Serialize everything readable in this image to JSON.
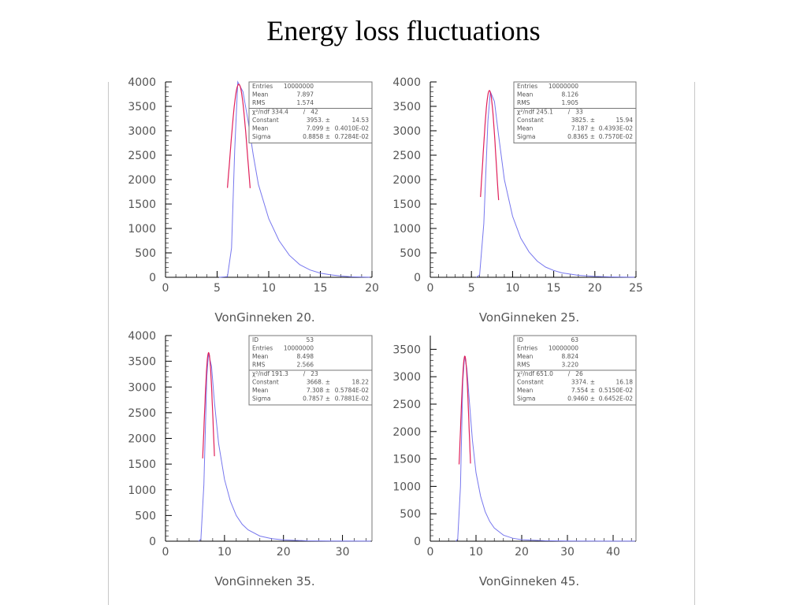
{
  "title": "Energy loss fluctuations",
  "colors": {
    "histogram": "#7777ee",
    "fit": "#e0205a",
    "axis": "#000000",
    "frame": "#777777",
    "text": "#555555"
  },
  "chart_data": [
    {
      "type": "line",
      "xlabel": "VonGinneken  20.",
      "xlim": [
        0,
        20
      ],
      "ylim": [
        0,
        4000
      ],
      "xticks": [
        0,
        5,
        10,
        15,
        20
      ],
      "yticks": [
        0,
        500,
        1000,
        1500,
        2000,
        2500,
        3000,
        3500,
        4000
      ],
      "series": [
        {
          "kind": "histogram",
          "x": [
            5.2,
            6.0,
            6.4,
            6.7,
            7.0,
            7.5,
            8.0,
            8.5,
            9.0,
            10,
            11,
            12,
            13,
            14,
            15,
            16,
            17,
            18,
            19.8
          ],
          "y": [
            0,
            15,
            600,
            2600,
            4000,
            3800,
            3200,
            2500,
            1900,
            1200,
            750,
            450,
            260,
            150,
            85,
            50,
            25,
            10,
            2
          ]
        },
        {
          "kind": "gaussian-fit",
          "constant": 3953,
          "mean": 7.099,
          "sigma": 0.8858,
          "range": [
            6.0,
            8.2
          ]
        }
      ],
      "stats": {
        "rows_top": [
          [
            "Entries",
            "10000000"
          ],
          [
            "Mean",
            "7.897"
          ],
          [
            "RMS",
            "1.574"
          ]
        ],
        "chi2": [
          "χ²/ndf 334.4",
          "/",
          "42"
        ],
        "rows_fit": [
          [
            "Constant",
            "3953. ±",
            "14.53"
          ],
          [
            "Mean",
            "7.099 ±",
            "0.4010E-02"
          ],
          [
            "Sigma",
            "0.8858 ±",
            "0.7284E-02"
          ]
        ]
      }
    },
    {
      "type": "line",
      "xlabel": "VonGinneken  25.",
      "xlim": [
        0,
        25
      ],
      "ylim": [
        0,
        4000
      ],
      "xticks": [
        0,
        5,
        10,
        15,
        20,
        25
      ],
      "yticks": [
        0,
        500,
        1000,
        1500,
        2000,
        2500,
        3000,
        3500,
        4000
      ],
      "series": [
        {
          "kind": "histogram",
          "x": [
            5.6,
            6.0,
            6.5,
            7.0,
            7.3,
            7.8,
            8.3,
            9.0,
            10,
            11,
            12,
            13,
            14,
            15,
            16,
            18,
            20,
            22,
            24.8
          ],
          "y": [
            0,
            50,
            1100,
            3200,
            3800,
            3600,
            2900,
            2000,
            1250,
            800,
            520,
            330,
            210,
            140,
            90,
            40,
            18,
            8,
            2
          ]
        },
        {
          "kind": "gaussian-fit",
          "constant": 3825,
          "mean": 7.187,
          "sigma": 0.8365,
          "range": [
            6.1,
            8.3
          ]
        }
      ],
      "stats": {
        "rows_top": [
          [
            "Entries",
            "10000000"
          ],
          [
            "Mean",
            "8.126"
          ],
          [
            "RMS",
            "1.905"
          ]
        ],
        "chi2": [
          "χ²/ndf 245.1",
          "/",
          "33"
        ],
        "rows_fit": [
          [
            "Constant",
            "3825. ±",
            "15.94"
          ],
          [
            "Mean",
            "7.187 ±",
            "0.4393E-02"
          ],
          [
            "Sigma",
            "0.8365 ±",
            "0.7570E-02"
          ]
        ]
      }
    },
    {
      "type": "line",
      "xlabel": "VonGinneken  35.",
      "xlim": [
        0,
        35
      ],
      "ylim": [
        0,
        4000
      ],
      "xticks": [
        0,
        10,
        20,
        30
      ],
      "yticks": [
        0,
        500,
        1000,
        1500,
        2000,
        2500,
        3000,
        3500,
        4000
      ],
      "series": [
        {
          "kind": "histogram",
          "x": [
            5.6,
            6.0,
            6.5,
            7.0,
            7.3,
            7.8,
            8.3,
            9.0,
            10,
            11,
            12,
            13,
            14,
            16,
            18,
            20,
            24,
            28,
            34.8
          ],
          "y": [
            0,
            40,
            1100,
            3200,
            3650,
            3400,
            2700,
            1900,
            1200,
            780,
            500,
            330,
            220,
            100,
            50,
            25,
            8,
            3,
            1
          ]
        },
        {
          "kind": "gaussian-fit",
          "constant": 3668,
          "mean": 7.308,
          "sigma": 0.7857,
          "range": [
            6.3,
            8.3
          ]
        }
      ],
      "stats": {
        "rows_top": [
          [
            "ID",
            "53"
          ],
          [
            "Entries",
            "10000000"
          ],
          [
            "Mean",
            "8.498"
          ],
          [
            "RMS",
            "2.566"
          ]
        ],
        "chi2": [
          "χ²/ndf 191.3",
          "/",
          "23"
        ],
        "rows_fit": [
          [
            "Constant",
            "3668. ±",
            "18.22"
          ],
          [
            "Mean",
            "7.308 ±",
            "0.5784E-02"
          ],
          [
            "Sigma",
            "0.7857 ±",
            "0.7881E-02"
          ]
        ]
      }
    },
    {
      "type": "line",
      "xlabel": "VonGinneken  45.",
      "xlim": [
        0,
        45
      ],
      "ylim": [
        0,
        3750
      ],
      "xticks": [
        0,
        10,
        20,
        30,
        40
      ],
      "yticks": [
        0,
        500,
        1000,
        1500,
        2000,
        2500,
        3000,
        3500
      ],
      "series": [
        {
          "kind": "histogram",
          "x": [
            5.6,
            6.0,
            6.6,
            7.1,
            7.5,
            8.0,
            8.5,
            9.2,
            10,
            11,
            12,
            13,
            14,
            16,
            18,
            20,
            25,
            30,
            44.8
          ],
          "y": [
            0,
            40,
            1000,
            2900,
            3380,
            3150,
            2600,
            1850,
            1250,
            820,
            540,
            360,
            240,
            110,
            55,
            28,
            8,
            3,
            1
          ]
        },
        {
          "kind": "gaussian-fit",
          "constant": 3374,
          "mean": 7.554,
          "sigma": 0.946,
          "range": [
            6.3,
            8.8
          ]
        }
      ],
      "stats": {
        "rows_top": [
          [
            "ID",
            "63"
          ],
          [
            "Entries",
            "10000000"
          ],
          [
            "Mean",
            "8.824"
          ],
          [
            "RMS",
            "3.220"
          ]
        ],
        "chi2": [
          "χ²/ndf 651.0",
          "/",
          "26"
        ],
        "rows_fit": [
          [
            "Constant",
            "3374. ±",
            "16.18"
          ],
          [
            "Mean",
            "7.554 ±",
            "0.5150E-02"
          ],
          [
            "Sigma",
            "0.9460 ±",
            "0.6452E-02"
          ]
        ]
      }
    }
  ]
}
